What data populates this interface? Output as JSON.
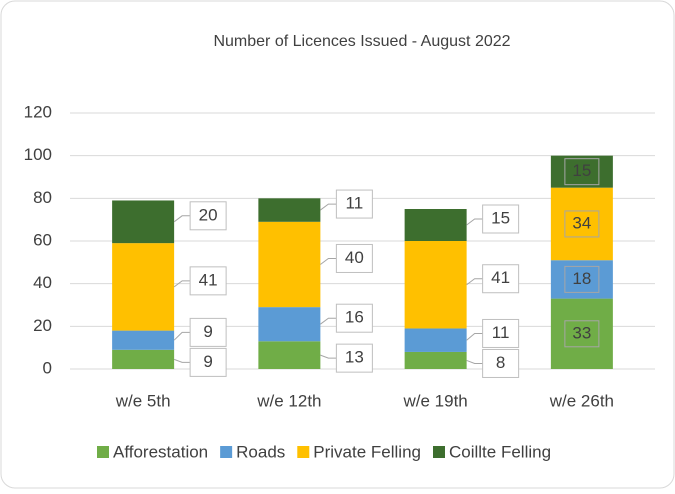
{
  "chart_data": {
    "type": "stacked-bar",
    "title": "Number of Licences Issued - August 2022",
    "categories": [
      "w/e 5th",
      "w/e 12th",
      "w/e 19th",
      "w/e 26th"
    ],
    "series": [
      {
        "name": "Afforestation",
        "color": "#70ad47",
        "values": [
          9,
          13,
          8,
          33
        ]
      },
      {
        "name": "Roads",
        "color": "#5b9bd5",
        "values": [
          9,
          16,
          11,
          18
        ]
      },
      {
        "name": "Private Felling",
        "color": "#ffc000",
        "values": [
          41,
          40,
          41,
          34
        ]
      },
      {
        "name": "Coillte Felling",
        "color": "#3d6e2e",
        "values": [
          20,
          11,
          15,
          15
        ]
      }
    ],
    "ylim": [
      0,
      120
    ],
    "yticks": [
      0,
      20,
      40,
      60,
      80,
      100,
      120
    ],
    "grid": true,
    "legend": "bottom"
  }
}
